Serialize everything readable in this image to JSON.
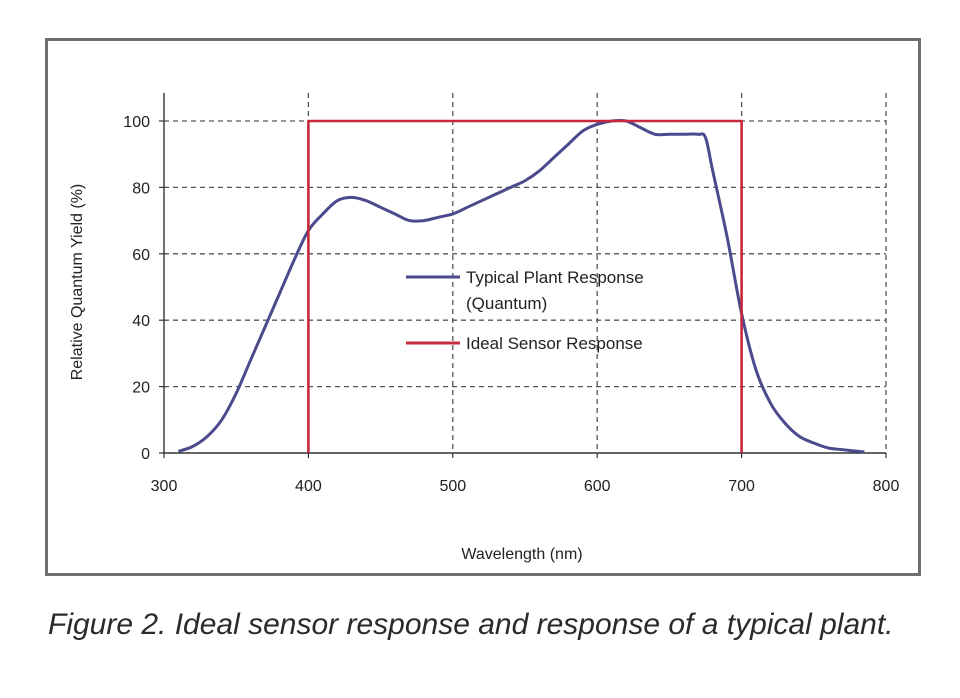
{
  "caption": "Figure 2.  Ideal sensor response and response of a typical plant.",
  "chart_data": {
    "type": "line",
    "title": "",
    "xlabel": "Wavelength (nm)",
    "ylabel": "Relative Quantum Yield (%)",
    "xlim": [
      300,
      800
    ],
    "ylim": [
      0,
      100
    ],
    "xticks": [
      300,
      400,
      500,
      600,
      700,
      800
    ],
    "yticks": [
      0,
      20,
      40,
      60,
      80,
      100
    ],
    "grid": true,
    "legend_position": "center",
    "colors": {
      "plant": "#4a4a8c",
      "sensor": "#c8283c",
      "grid": "#555555",
      "axis": "#333333"
    },
    "series": [
      {
        "name": "Typical Plant Response (Quantum)",
        "x": [
          310,
          320,
          330,
          340,
          350,
          360,
          370,
          380,
          390,
          400,
          410,
          420,
          430,
          440,
          450,
          460,
          470,
          480,
          490,
          500,
          510,
          520,
          530,
          540,
          550,
          560,
          570,
          580,
          590,
          600,
          610,
          620,
          630,
          640,
          650,
          660,
          670,
          675,
          680,
          690,
          700,
          710,
          720,
          730,
          740,
          750,
          760,
          770,
          785
        ],
        "y": [
          0.5,
          2,
          5,
          10,
          18,
          28,
          38,
          48,
          58,
          67,
          72,
          76,
          77,
          76,
          74,
          72,
          70,
          70,
          71,
          72,
          74,
          76,
          78,
          80,
          82,
          85,
          89,
          93,
          97,
          99,
          100,
          100,
          98,
          96,
          96,
          96,
          96,
          95,
          85,
          65,
          42,
          25,
          15,
          9,
          5,
          3,
          1.5,
          1,
          0.3
        ]
      },
      {
        "name": "Ideal Sensor Response",
        "x": [
          400,
          400,
          700,
          700
        ],
        "y": [
          0,
          100,
          100,
          0
        ]
      }
    ],
    "legend": [
      {
        "line1": "Typical Plant Response",
        "line2": "(Quantum)"
      },
      {
        "line1": "Ideal Sensor Response",
        "line2": ""
      }
    ]
  }
}
